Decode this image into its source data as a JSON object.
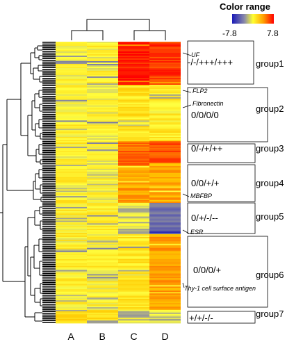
{
  "chart_data": {
    "type": "heatmap",
    "columns": [
      "A",
      "B",
      "C",
      "D"
    ],
    "legend": {
      "title": "Color range",
      "min_label": "-7.8",
      "max_label": "7.8",
      "min": -7.8,
      "max": 7.8
    },
    "colors": {
      "low": "#2a2ab0",
      "mid_low": "#8e8ea4",
      "mid": "#ffff40",
      "mid_high": "#ffb000",
      "high": "#ff1a00"
    },
    "groups": [
      {
        "name": "group1",
        "pattern": "-/-/+++/+++",
        "genes": [
          "UF"
        ],
        "mean": [
          0.5,
          0.5,
          7.2,
          6.4
        ]
      },
      {
        "name": "group2",
        "pattern": "0/0/0/0",
        "genes": [
          "FLP2",
          "Fibronectin"
        ],
        "mean": [
          0.6,
          0.4,
          1.2,
          0.9
        ]
      },
      {
        "name": "group3",
        "pattern": "0/-/+/++",
        "genes": [],
        "mean": [
          0.6,
          0.3,
          5.0,
          5.8
        ]
      },
      {
        "name": "group4",
        "pattern": "0/0/+/+",
        "genes": [
          "MBFBP"
        ],
        "mean": [
          0.7,
          0.5,
          3.5,
          3.4
        ]
      },
      {
        "name": "group5",
        "pattern": "0/+/-/--",
        "genes": [
          "ESR"
        ],
        "mean": [
          0.6,
          0.7,
          -0.6,
          -3.5
        ]
      },
      {
        "name": "group6",
        "pattern": "0/0/0/+",
        "genes": [
          "Thy-1 cell surface antigen"
        ],
        "mean": [
          0.6,
          0.5,
          1.0,
          3.6
        ]
      },
      {
        "name": "group7",
        "pattern": "+/+/-/-",
        "genes": [],
        "mean": [
          1.6,
          1.5,
          -0.5,
          -0.6
        ]
      }
    ]
  }
}
